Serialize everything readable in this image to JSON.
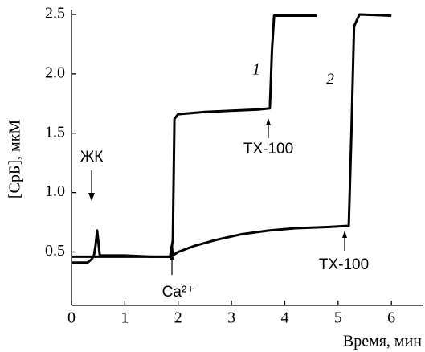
{
  "chart_data": {
    "type": "line",
    "xlabel": "Время, мин",
    "ylabel": "[СрБ], мкМ",
    "xlim": [
      0,
      6.6
    ],
    "ylim": [
      0.05,
      2.5
    ],
    "xticks": [
      0,
      1,
      2,
      3,
      4,
      5,
      6
    ],
    "yticks": [
      0.5,
      {
        "value": 1,
        "label": "1.0"
      },
      1.5,
      {
        "value": 2,
        "label": "2.0"
      },
      2.5
    ],
    "series": [
      {
        "name": "1",
        "color": "#000000",
        "x": [
          0,
          0.3,
          0.38,
          0.42,
          0.45,
          0.48,
          0.5,
          0.53,
          0.6,
          1.0,
          1.5,
          1.85,
          1.9,
          1.93,
          2.0,
          2.5,
          3.0,
          3.5,
          3.72,
          3.76,
          3.8,
          4.0,
          4.6
        ],
        "values": [
          0.41,
          0.41,
          0.44,
          0.47,
          0.55,
          0.68,
          0.6,
          0.47,
          0.47,
          0.47,
          0.46,
          0.46,
          0.6,
          1.62,
          1.66,
          1.68,
          1.69,
          1.7,
          1.71,
          2.2,
          2.49,
          2.49,
          2.49
        ]
      },
      {
        "name": "2",
        "color": "#000000",
        "x": [
          0,
          0.5,
          1.0,
          1.5,
          1.85,
          1.88,
          1.9,
          2.0,
          2.3,
          2.7,
          3.2,
          3.7,
          4.2,
          4.8,
          5.2,
          5.25,
          5.3,
          5.4,
          6.0
        ],
        "values": [
          0.46,
          0.46,
          0.46,
          0.46,
          0.46,
          0.55,
          0.47,
          0.5,
          0.55,
          0.6,
          0.65,
          0.68,
          0.7,
          0.71,
          0.72,
          1.5,
          2.4,
          2.5,
          2.49
        ]
      }
    ],
    "annotations": {
      "fatty_acid": "ЖК",
      "calcium": "Ca²⁺",
      "triton_1": "TX-100",
      "triton_2": "TX-100"
    }
  }
}
